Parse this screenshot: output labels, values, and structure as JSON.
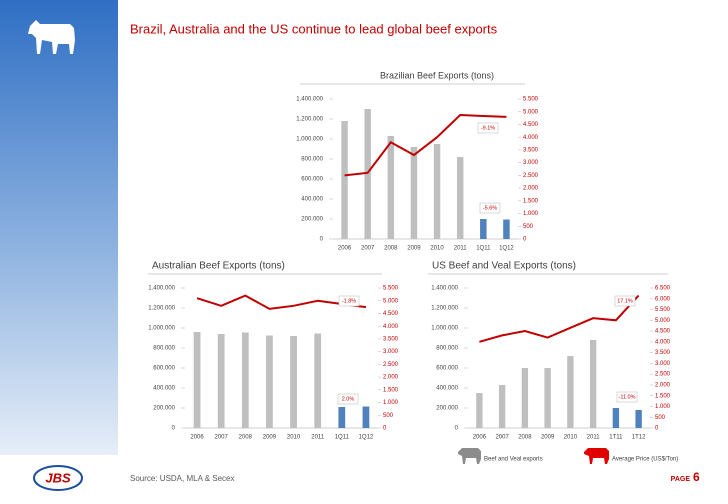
{
  "title": "Brazil, Australia and the US continue to lead global beef exports",
  "source": "Source: USDA, MLA & Secex",
  "page_label": "PAGE",
  "page_number": 6,
  "chart_data": [
    {
      "type": "combo",
      "title": "Brazilian Beef Exports (tons)",
      "categories": [
        "2006",
        "2007",
        "2008",
        "2009",
        "2010",
        "2011",
        "1Q11",
        "1Q12"
      ],
      "series": [
        {
          "type": "bar",
          "values": [
            1180000,
            1300000,
            1030000,
            920000,
            950000,
            820000,
            200000,
            195000
          ],
          "colors": [
            "#bfbfbf",
            "#bfbfbf",
            "#bfbfbf",
            "#bfbfbf",
            "#bfbfbf",
            "#bfbfbf",
            "#4f81bd",
            "#4f81bd"
          ]
        },
        {
          "type": "line",
          "axis": "y2",
          "color": "#c00000",
          "values": [
            2500,
            2600,
            3800,
            3300,
            4000,
            4870,
            4830,
            4800
          ]
        }
      ],
      "ylim": [
        0,
        1400000
      ],
      "yticks": [
        0,
        {
          "value": 200000,
          "label": "200.000"
        },
        {
          "value": 400000,
          "label": "400.000"
        },
        {
          "value": 600000,
          "label": "600.000"
        },
        {
          "value": 800000,
          "label": "800.000"
        },
        {
          "value": 1000000,
          "label": "1.000.000"
        },
        {
          "value": 1200000,
          "label": "1.200.000"
        },
        {
          "value": 1400000,
          "label": "1.400.000"
        }
      ],
      "y2lim": [
        0,
        5500
      ],
      "y2ticks": [
        0,
        500,
        {
          "value": 1000,
          "label": "1.000"
        },
        {
          "value": 1500,
          "label": "1.500"
        },
        {
          "value": 2000,
          "label": "2.000"
        },
        {
          "value": 2500,
          "label": "2.500"
        },
        {
          "value": 3000,
          "label": "3.000"
        },
        {
          "value": 3500,
          "label": "3.500"
        },
        {
          "value": 4000,
          "label": "4.000"
        },
        {
          "value": 4500,
          "label": "4.500"
        },
        {
          "value": 5000,
          "label": "5.000"
        },
        {
          "value": 5500,
          "label": "5.500"
        }
      ],
      "annotations": [
        "-9.1%",
        "-5.6%"
      ]
    },
    {
      "type": "combo",
      "title": "Australian Beef Exports (tons)",
      "categories": [
        "2006",
        "2007",
        "2008",
        "2009",
        "2010",
        "2011",
        "1Q11",
        "1Q12"
      ],
      "series": [
        {
          "type": "bar",
          "values": [
            960000,
            940000,
            955000,
            925000,
            920000,
            945000,
            210000,
            215000
          ],
          "colors": [
            "#bfbfbf",
            "#bfbfbf",
            "#bfbfbf",
            "#bfbfbf",
            "#bfbfbf",
            "#bfbfbf",
            "#4f81bd",
            "#4f81bd"
          ]
        },
        {
          "type": "line",
          "axis": "y2",
          "color": "#c00000",
          "values": [
            5100,
            4800,
            5200,
            4680,
            4800,
            5000,
            4870,
            4750
          ]
        }
      ],
      "ylim": [
        0,
        1400000
      ],
      "yticks": [
        0,
        {
          "value": 200000,
          "label": "200.000"
        },
        {
          "value": 400000,
          "label": "400.000"
        },
        {
          "value": 600000,
          "label": "600.000"
        },
        {
          "value": 800000,
          "label": "800.000"
        },
        {
          "value": 1000000,
          "label": "1.000.000"
        },
        {
          "value": 1200000,
          "label": "1.200.000"
        },
        {
          "value": 1400000,
          "label": "1.400.000"
        }
      ],
      "y2lim": [
        0,
        5500
      ],
      "y2ticks": [
        0,
        500,
        {
          "value": 1000,
          "label": "1.000"
        },
        {
          "value": 1500,
          "label": "1.500"
        },
        {
          "value": 2000,
          "label": "2.000"
        },
        {
          "value": 2500,
          "label": "2.500"
        },
        {
          "value": 3000,
          "label": "3.000"
        },
        {
          "value": 3500,
          "label": "3.500"
        },
        {
          "value": 4000,
          "label": "4.000"
        },
        {
          "value": 4500,
          "label": "4.500"
        },
        {
          "value": 5000,
          "label": "5.000"
        },
        {
          "value": 5500,
          "label": "5.500"
        }
      ],
      "annotations": [
        "-1.8%",
        "2.0%"
      ]
    },
    {
      "type": "combo",
      "title": "US Beef and Veal Exports (tons)",
      "categories": [
        "2006",
        "2007",
        "2008",
        "2009",
        "2010",
        "2011",
        "1T11",
        "1T12"
      ],
      "series": [
        {
          "type": "bar",
          "name": "Beef and Veal exports",
          "values": [
            350000,
            430000,
            600000,
            600000,
            720000,
            880000,
            200000,
            180000
          ],
          "colors": [
            "#bfbfbf",
            "#bfbfbf",
            "#bfbfbf",
            "#bfbfbf",
            "#bfbfbf",
            "#bfbfbf",
            "#4f81bd",
            "#4f81bd"
          ]
        },
        {
          "type": "line",
          "axis": "y2",
          "name": "Average Price (US$/Ton)",
          "color": "#c00000",
          "values": [
            4000,
            4300,
            4500,
            4200,
            4650,
            5100,
            5000,
            6150
          ]
        }
      ],
      "ylim": [
        0,
        1400000
      ],
      "yticks": [
        0,
        {
          "value": 200000,
          "label": "200.000"
        },
        {
          "value": 400000,
          "label": "400.000"
        },
        {
          "value": 600000,
          "label": "600.000"
        },
        {
          "value": 800000,
          "label": "800.000"
        },
        {
          "value": 1000000,
          "label": "1.000.000"
        },
        {
          "value": 1200000,
          "label": "1.200.000"
        },
        {
          "value": 1400000,
          "label": "1.400.000"
        }
      ],
      "y2lim": [
        0,
        6500
      ],
      "y2ticks": [
        0,
        500,
        {
          "value": 1000,
          "label": "1.000"
        },
        {
          "value": 1500,
          "label": "1.500"
        },
        {
          "value": 2000,
          "label": "2.000"
        },
        {
          "value": 2500,
          "label": "2.500"
        },
        {
          "value": 3000,
          "label": "3.000"
        },
        {
          "value": 3500,
          "label": "3.500"
        },
        {
          "value": 4000,
          "label": "4.000"
        },
        {
          "value": 4500,
          "label": "4.500"
        },
        {
          "value": 5000,
          "label": "5.000"
        },
        {
          "value": 5500,
          "label": "5.500"
        },
        {
          "value": 6000,
          "label": "6.000"
        },
        {
          "value": 6500,
          "label": "6.500"
        }
      ],
      "annotations": [
        "17.1%",
        "-11.0%"
      ]
    }
  ]
}
